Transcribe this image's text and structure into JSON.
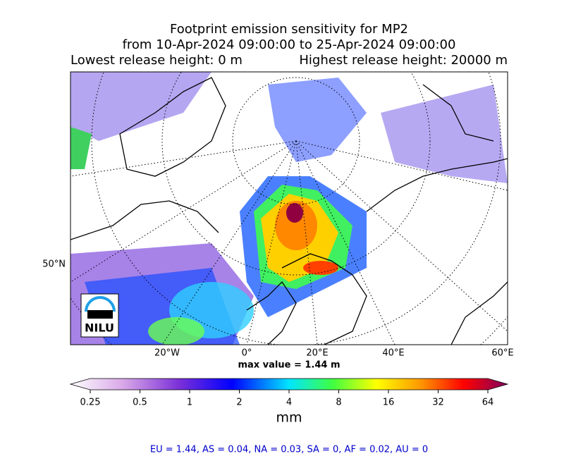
{
  "title": {
    "line1": "Footprint emission sensitivity for MP2",
    "line2": "from 10-Apr-2024 09:00:00 to 25-Apr-2024 09:00:00",
    "lowest": "Lowest release height: 0 m",
    "highest": "Highest release height: 20000 m"
  },
  "map": {
    "lat_labels": [
      "50°N"
    ],
    "lon_labels": [
      "20°W",
      "0°",
      "20°E",
      "40°E",
      "60°E"
    ],
    "logo": "NILU",
    "max_value": "max value = 1.44 m"
  },
  "colorbar": {
    "ticks": [
      0.25,
      0.5,
      1,
      2,
      4,
      8,
      16,
      32,
      64
    ],
    "lim": [
      0.25,
      64
    ],
    "log": true,
    "label": "mm"
  },
  "footer": "EU = 1.44,  AS = 0.04,  NA = 0.03,  SA = 0,  AF = 0.02,  AU = 0"
}
